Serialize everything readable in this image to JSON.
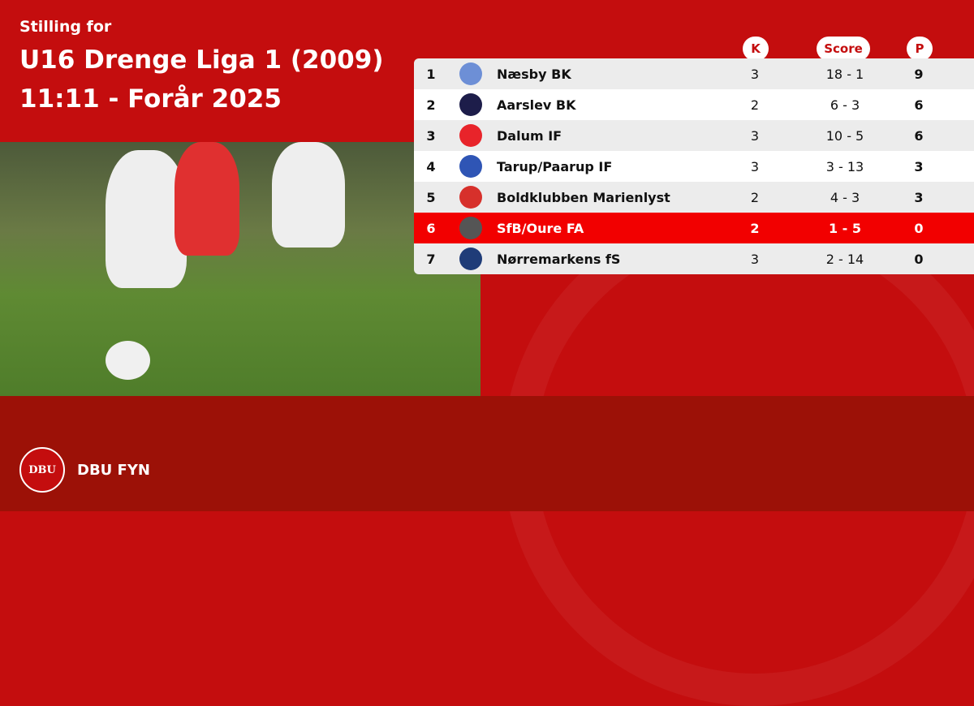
{
  "title": {
    "line1": "Stilling for",
    "line2": "U16 Drenge Liga 1 (2009)",
    "line3": "11:11 - Forår 2025"
  },
  "columns": {
    "k": "K",
    "score": "Score",
    "p": "P"
  },
  "rows": [
    {
      "pos": "1",
      "team": "Næsby BK",
      "k": "3",
      "score": "18 - 1",
      "p": "9",
      "logo_color": "#6d8fd6"
    },
    {
      "pos": "2",
      "team": "Aarslev BK",
      "k": "2",
      "score": "6 - 3",
      "p": "6",
      "logo_color": "#1d1d4a"
    },
    {
      "pos": "3",
      "team": "Dalum IF",
      "k": "3",
      "score": "10 - 5",
      "p": "6",
      "logo_color": "#e8242a"
    },
    {
      "pos": "4",
      "team": "Tarup/Paarup IF",
      "k": "3",
      "score": "3 - 13",
      "p": "3",
      "logo_color": "#2f55b5"
    },
    {
      "pos": "5",
      "team": "Boldklubben Marienlyst",
      "k": "2",
      "score": "4 - 3",
      "p": "3",
      "logo_color": "#d7302b"
    },
    {
      "pos": "6",
      "team": "SfB/Oure FA",
      "k": "2",
      "score": "1 - 5",
      "p": "0",
      "logo_color": "#555555",
      "highlight": true
    },
    {
      "pos": "7",
      "team": "Nørremarkens fS",
      "k": "3",
      "score": "2 - 14",
      "p": "0",
      "logo_color": "#1f3c78"
    }
  ],
  "footer": {
    "brand": "DBU FYN",
    "logo_text": "DBU"
  },
  "colors": {
    "primary": "#c40d0e",
    "footer": "#9c1107",
    "highlight": "#f20000"
  }
}
